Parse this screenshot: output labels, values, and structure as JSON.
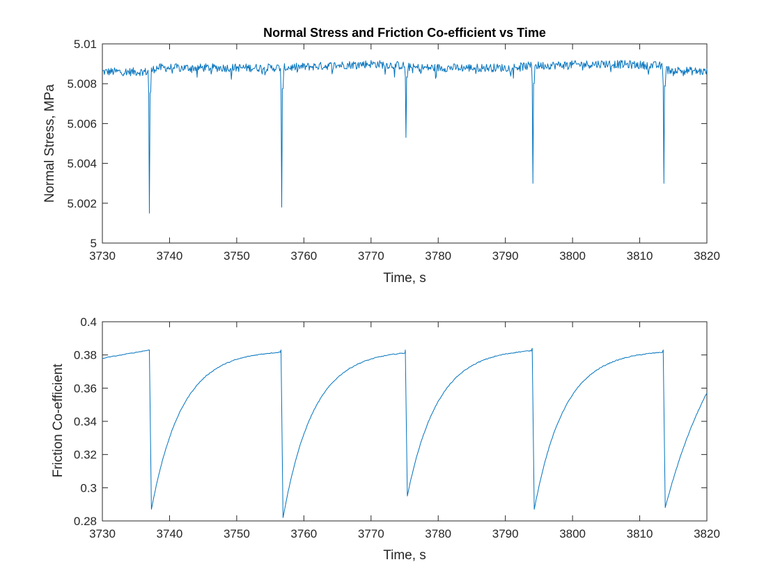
{
  "colors": {
    "series": "#0072BD",
    "axes": "#262626"
  },
  "chart_data": [
    {
      "type": "line",
      "title": "Normal Stress and Friction Co-efficient vs Time",
      "xlabel": "Time, s",
      "ylabel": "Normal Stress, MPa",
      "xlim": [
        3730,
        3820
      ],
      "ylim": [
        5.0,
        5.01
      ],
      "xticks": [
        "3730",
        "3740",
        "3750",
        "3760",
        "3770",
        "3780",
        "3790",
        "3800",
        "3810",
        "3820"
      ],
      "yticks": [
        "5",
        "5.002",
        "5.004",
        "5.006",
        "5.008",
        "5.01"
      ],
      "grid": false,
      "baseline_segments": [
        [
          3730,
          5.0086
        ],
        [
          3737,
          5.0086
        ],
        [
          3738,
          5.0088
        ],
        [
          3756,
          5.0088
        ],
        [
          3757,
          5.0088
        ],
        [
          3770,
          5.009
        ],
        [
          3775,
          5.0089
        ],
        [
          3776,
          5.0088
        ],
        [
          3790,
          5.0088
        ],
        [
          3794,
          5.0089
        ],
        [
          3805,
          5.009
        ],
        [
          3813,
          5.0089
        ],
        [
          3814,
          5.0087
        ],
        [
          3820,
          5.0086
        ]
      ],
      "noise_amplitude": 0.0003,
      "dips": [
        {
          "x": 3737.0,
          "y": 5.0015
        },
        {
          "x": 3756.7,
          "y": 5.0018
        },
        {
          "x": 3775.2,
          "y": 5.0053
        },
        {
          "x": 3794.1,
          "y": 5.003
        },
        {
          "x": 3813.6,
          "y": 5.003
        }
      ]
    },
    {
      "type": "line",
      "title": "",
      "xlabel": "Time, s",
      "ylabel": "Friction Co-efficient",
      "xlim": [
        3730,
        3820
      ],
      "ylim": [
        0.28,
        0.4
      ],
      "xticks": [
        "3730",
        "3740",
        "3750",
        "3760",
        "3770",
        "3780",
        "3790",
        "3800",
        "3810",
        "3820"
      ],
      "yticks": [
        "0.28",
        "0.3",
        "0.32",
        "0.34",
        "0.36",
        "0.38",
        "0.4"
      ],
      "grid": false,
      "start_value": 0.378,
      "plateau": 0.383,
      "slip_events": [
        {
          "peak_x": 3737.0,
          "peak_y": 0.383,
          "min_x": 3737.3,
          "min_y": 0.287
        },
        {
          "peak_x": 3756.6,
          "peak_y": 0.383,
          "min_x": 3756.9,
          "min_y": 0.282
        },
        {
          "peak_x": 3775.1,
          "peak_y": 0.383,
          "min_x": 3775.4,
          "min_y": 0.295
        },
        {
          "peak_x": 3794.0,
          "peak_y": 0.384,
          "min_x": 3794.3,
          "min_y": 0.287
        },
        {
          "peak_x": 3813.5,
          "peak_y": 0.383,
          "min_x": 3813.8,
          "min_y": 0.288
        }
      ],
      "end_value": 0.357
    }
  ]
}
